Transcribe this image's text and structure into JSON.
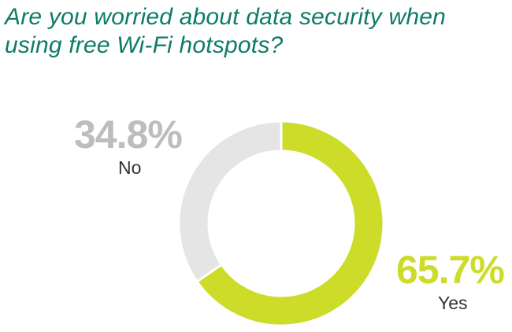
{
  "title": "Are you worried about data security when using free Wi-Fi hotspots?",
  "colors": {
    "title": "#0e7c67",
    "yes": "#cddc29",
    "no": "#e5e5e5",
    "no_text": "#bdbdbd",
    "label_text": "#333333"
  },
  "chart_data": {
    "type": "pie",
    "style": "donut",
    "title": "Are you worried about data security when using free Wi-Fi hotspots?",
    "slices": [
      {
        "label": "Yes",
        "value": 65.7,
        "display": "65.7%"
      },
      {
        "label": "No",
        "value": 34.8,
        "display": "34.8%"
      }
    ]
  }
}
